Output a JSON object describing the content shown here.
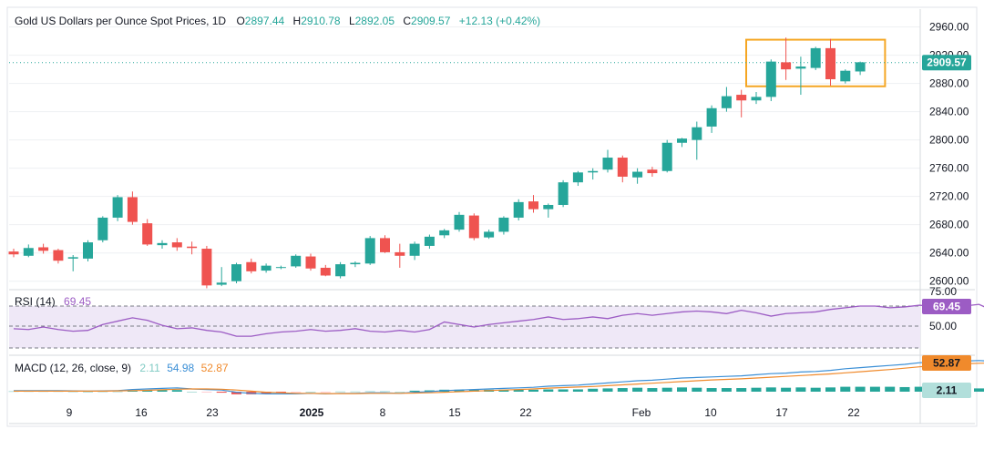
{
  "header": {
    "title": "Gold US Dollars per Ounce Spot Prices, 1D",
    "o_label": "O",
    "o_value": "2897.44",
    "h_label": "H",
    "h_value": "2910.78",
    "l_label": "L",
    "l_value": "2892.05",
    "c_label": "C",
    "c_value": "2909.57",
    "change": "+12.13 (+0.42%)"
  },
  "colors": {
    "up": "#26a69a",
    "down": "#ef5350",
    "rsi": "#9c5cc4",
    "rsi_band": "#efe8f7",
    "macd": "#3b8fd6",
    "signal": "#f08a2c",
    "box": "#f5a623",
    "grid": "#eef0f3",
    "text": "#131722"
  },
  "price_axis": {
    "ticks": [
      "2960.00",
      "2920.00",
      "2880.00",
      "2840.00",
      "2800.00",
      "2760.00",
      "2720.00",
      "2680.00",
      "2640.00",
      "2600.00"
    ],
    "last_price_label": "2909.57"
  },
  "time_axis": {
    "labels": [
      "9",
      "16",
      "23",
      "2025",
      "8",
      "15",
      "22",
      "Feb",
      "10",
      "17",
      "22"
    ]
  },
  "rsi": {
    "label": "RSI (14)",
    "value": "69.45",
    "axis_ticks": [
      "75.00",
      "50.00"
    ],
    "last_label": "69.45",
    "values": [
      48,
      47,
      50,
      47,
      45,
      46,
      53,
      57,
      61,
      58,
      52,
      48,
      49,
      46,
      44,
      39,
      39,
      42,
      44,
      45,
      47,
      45,
      46,
      48,
      45,
      44,
      46,
      44,
      47,
      56,
      53,
      50,
      53,
      55,
      57,
      59,
      62,
      59,
      60,
      62,
      60,
      64,
      66,
      64,
      66,
      68,
      69,
      68,
      66,
      70,
      67,
      63,
      66,
      67,
      68,
      71,
      73,
      75,
      75,
      73,
      74,
      76,
      74,
      74,
      75,
      77,
      69,
      66,
      69.45
    ]
  },
  "macd": {
    "label": "MACD (12, 26, close, 9)",
    "hist_value": "2.11",
    "macd_value": "54.98",
    "signal_value": "52.87",
    "last_label": "52.87",
    "hist_label": "2.11",
    "macd_line": [
      2,
      2,
      2,
      2,
      1.5,
      1,
      1.5,
      2,
      4,
      5,
      6,
      7,
      5,
      4,
      3,
      -1,
      -3,
      -4,
      -4,
      -4,
      -3,
      -4,
      -3,
      -3,
      -2,
      -2,
      -3,
      -1,
      0,
      2,
      3,
      4,
      5,
      6,
      7,
      8,
      10,
      11,
      12,
      14,
      16,
      18,
      20,
      21,
      23,
      25,
      26,
      27,
      28,
      29,
      31,
      33,
      34,
      36,
      37,
      39,
      42,
      44,
      46,
      48,
      50,
      53,
      54,
      55,
      56,
      57,
      55.5,
      55,
      54.98
    ],
    "signal_line": [
      1,
      1,
      1,
      1,
      1,
      1,
      1,
      1.5,
      2,
      2.5,
      3.5,
      4.5,
      5,
      5,
      4.5,
      3,
      1,
      -1,
      -2,
      -3,
      -3,
      -3.5,
      -3.5,
      -3.5,
      -3,
      -3,
      -3,
      -2.5,
      -2,
      -1,
      0,
      1,
      2,
      3,
      4,
      5,
      6.5,
      7.5,
      8.5,
      9.5,
      11,
      12.5,
      14,
      15.5,
      17,
      18.5,
      20,
      21.5,
      22.5,
      23.5,
      25,
      26.5,
      28,
      29.5,
      31,
      32.5,
      34.5,
      36.5,
      38.5,
      40.5,
      43,
      45.5,
      47.5,
      49.5,
      51,
      52,
      52.5,
      52.7,
      52.87
    ]
  },
  "chart_data": {
    "type": "candlestick",
    "title": "Gold US Dollars per Ounce Spot Prices, 1D",
    "y_range": [
      2588,
      2975
    ],
    "x_labels": [
      "9",
      "16",
      "23",
      "2025",
      "8",
      "15",
      "22",
      "Feb",
      "10",
      "17",
      "22"
    ],
    "ohlc": [
      [
        2642,
        2646,
        2634,
        2638
      ],
      [
        2636,
        2652,
        2634,
        2647
      ],
      [
        2648,
        2653,
        2639,
        2643
      ],
      [
        2644,
        2646,
        2625,
        2629
      ],
      [
        2632,
        2637,
        2614,
        2634
      ],
      [
        2632,
        2658,
        2628,
        2655
      ],
      [
        2658,
        2692,
        2655,
        2690
      ],
      [
        2690,
        2722,
        2685,
        2719
      ],
      [
        2719,
        2727,
        2680,
        2684
      ],
      [
        2682,
        2688,
        2650,
        2652
      ],
      [
        2651,
        2658,
        2646,
        2654
      ],
      [
        2655,
        2661,
        2643,
        2648
      ],
      [
        2649,
        2656,
        2638,
        2647
      ],
      [
        2646,
        2650,
        2590,
        2594
      ],
      [
        2595,
        2620,
        2593,
        2598
      ],
      [
        2600,
        2626,
        2597,
        2624
      ],
      [
        2627,
        2632,
        2611,
        2614
      ],
      [
        2615,
        2625,
        2612,
        2622
      ],
      [
        2619,
        2622,
        2617,
        2620
      ],
      [
        2621,
        2638,
        2619,
        2636
      ],
      [
        2635,
        2639,
        2615,
        2618
      ],
      [
        2619,
        2623,
        2607,
        2608
      ],
      [
        2607,
        2627,
        2604,
        2624
      ],
      [
        2624,
        2628,
        2620,
        2626
      ],
      [
        2625,
        2664,
        2623,
        2661
      ],
      [
        2661,
        2665,
        2640,
        2641
      ],
      [
        2641,
        2653,
        2619,
        2636
      ],
      [
        2636,
        2656,
        2630,
        2653
      ],
      [
        2650,
        2666,
        2646,
        2663
      ],
      [
        2665,
        2674,
        2661,
        2672
      ],
      [
        2673,
        2698,
        2670,
        2694
      ],
      [
        2693,
        2696,
        2658,
        2661
      ],
      [
        2662,
        2673,
        2660,
        2670
      ],
      [
        2670,
        2692,
        2666,
        2690
      ],
      [
        2690,
        2716,
        2686,
        2712
      ],
      [
        2713,
        2722,
        2697,
        2702
      ],
      [
        2702,
        2710,
        2690,
        2708
      ],
      [
        2708,
        2743,
        2705,
        2740
      ],
      [
        2740,
        2756,
        2735,
        2754
      ],
      [
        2754,
        2760,
        2744,
        2756
      ],
      [
        2758,
        2786,
        2754,
        2775
      ],
      [
        2775,
        2778,
        2740,
        2748
      ],
      [
        2747,
        2760,
        2738,
        2755
      ],
      [
        2758,
        2762,
        2748,
        2753
      ],
      [
        2756,
        2800,
        2754,
        2796
      ],
      [
        2796,
        2803,
        2790,
        2802
      ],
      [
        2800,
        2826,
        2772,
        2818
      ],
      [
        2819,
        2849,
        2810,
        2845
      ],
      [
        2845,
        2875,
        2840,
        2862
      ],
      [
        2864,
        2871,
        2832,
        2856
      ],
      [
        2856,
        2868,
        2851,
        2861
      ],
      [
        2861,
        2914,
        2855,
        2911
      ],
      [
        2910,
        2945,
        2885,
        2900
      ],
      [
        2901,
        2918,
        2864,
        2904
      ],
      [
        2902,
        2932,
        2899,
        2930
      ],
      [
        2930,
        2943,
        2877,
        2886
      ],
      [
        2883,
        2900,
        2880,
        2898
      ],
      [
        2897,
        2911,
        2892,
        2910
      ]
    ],
    "last_close": 2909.57,
    "consolidation_box": {
      "price_low": 2876,
      "price_high": 2942,
      "from_bar": 50,
      "to_bar": 58
    }
  }
}
